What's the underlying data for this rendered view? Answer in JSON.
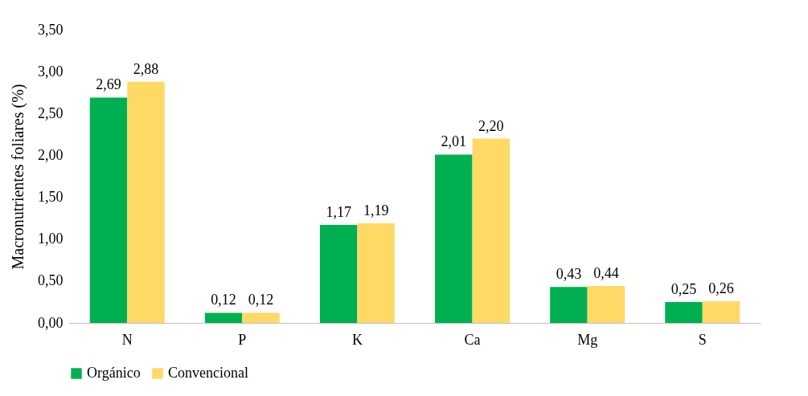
{
  "chart_data": {
    "type": "bar",
    "ylabel": "Macronutrientes foliares (%)",
    "categories": [
      "N",
      "P",
      "K",
      "Ca",
      "Mg",
      "S"
    ],
    "series": [
      {
        "name": "Orgánico",
        "color": "#00b050",
        "values": [
          2.69,
          0.12,
          1.17,
          2.01,
          0.43,
          0.25
        ],
        "value_labels": [
          "2,69",
          "0,12",
          "1,17",
          "2,01",
          "0,43",
          "0,25"
        ]
      },
      {
        "name": "Convencional",
        "color": "#ffd966",
        "values": [
          2.88,
          0.12,
          1.19,
          2.2,
          0.44,
          0.26
        ],
        "value_labels": [
          "2,88",
          "0,12",
          "1,19",
          "2,20",
          "0,44",
          "0,26"
        ]
      }
    ],
    "ylim": [
      0,
      3.5
    ],
    "yticks": [
      {
        "value": 0,
        "label": "0,00"
      },
      {
        "value": 0.5,
        "label": "0,50"
      },
      {
        "value": 1,
        "label": "1,00"
      },
      {
        "value": 1.5,
        "label": "1,50"
      },
      {
        "value": 2,
        "label": "2,00"
      },
      {
        "value": 2.5,
        "label": "2,50"
      },
      {
        "value": 3,
        "label": "3,00"
      },
      {
        "value": 3.5,
        "label": "3,50"
      }
    ],
    "grid": false,
    "legend": "bottom"
  }
}
